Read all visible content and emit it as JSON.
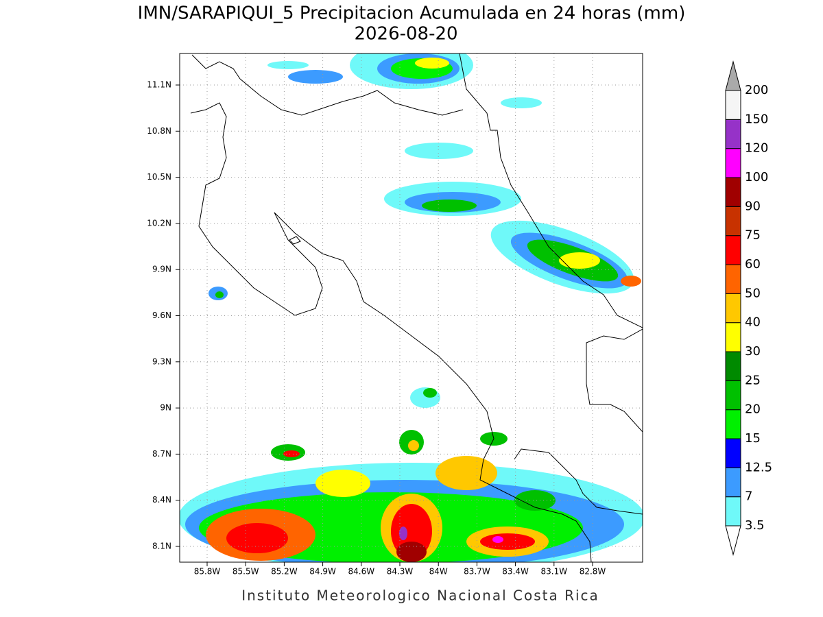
{
  "title": "IMN/SARAPIQUI_5 Precipitacion Acumulada en 24 horas (mm)",
  "subtitle": "2026-08-20",
  "lat_labels": [
    "11.1N",
    "10.8N",
    "10.5N",
    "10.2N",
    "9.9N",
    "9.6N",
    "9.3N",
    "9N",
    "8.7N",
    "8.4N",
    "8.1N"
  ],
  "lon_labels": [
    "85.8W",
    "85.5W",
    "85.2W",
    "84.9W",
    "84.6W",
    "84.3W",
    "84W",
    "83.7W",
    "83.4W",
    "83.1W",
    "82.8W"
  ],
  "legend": {
    "levels": [
      "3.5",
      "7",
      "12.5",
      "15",
      "20",
      "25",
      "30",
      "40",
      "50",
      "60",
      "75",
      "90",
      "100",
      "120",
      "150",
      "200"
    ],
    "colors": [
      "#ffffff",
      "#6ff9f9",
      "#3c9bff",
      "#0000ff",
      "#00f000",
      "#00c000",
      "#008a00",
      "#ffff00",
      "#ffc800",
      "#ff6400",
      "#ff0000",
      "#c83200",
      "#a00000",
      "#ff00ff",
      "#9632c8",
      "#f5f5f5",
      "#aaaaaa"
    ]
  },
  "footer": "Instituto Meteorologico Nacional Costa Rica"
}
